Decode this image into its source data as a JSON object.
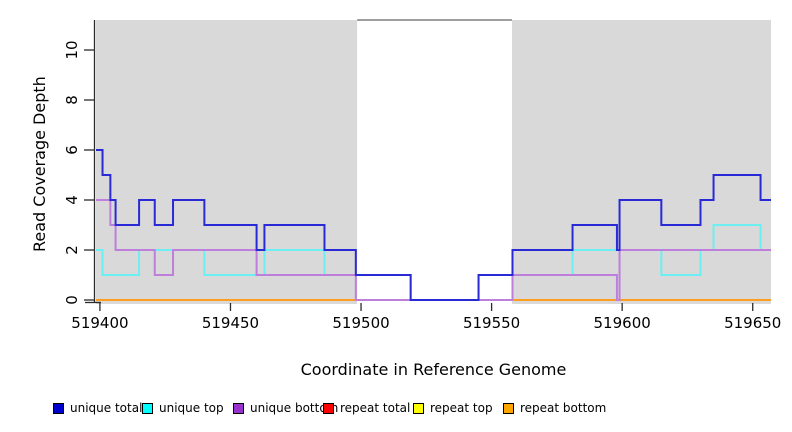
{
  "chart_data": {
    "type": "line",
    "subtype": "step-coverage",
    "title": "",
    "xlabel": "Coordinate in Reference Genome",
    "ylabel": "Read Coverage Depth",
    "xlim": [
      519398.5,
      519657
    ],
    "ylim": [
      0,
      11.2
    ],
    "x_ticks": [
      519400,
      519450,
      519500,
      519550,
      519600,
      519650
    ],
    "y_ticks": [
      0,
      2,
      4,
      6,
      8,
      10
    ],
    "grid": false,
    "shaded_regions": [
      {
        "x0": 519398.5,
        "x1": 519498.5,
        "color": "#d9d9d9"
      },
      {
        "x0": 519557.8,
        "x1": 519657.0,
        "color": "#d9d9d9"
      }
    ],
    "gap_top_border": {
      "x0": 519498.5,
      "x1": 519557.8,
      "color": "#7f7f7f"
    },
    "series": [
      {
        "name": "unique total",
        "line_color": "#2929d6",
        "legend_color": "#0000cd",
        "steps": [
          [
            519398.5,
            6
          ],
          [
            519401,
            5
          ],
          [
            519404,
            4
          ],
          [
            519406,
            3
          ],
          [
            519415,
            4
          ],
          [
            519421,
            3
          ],
          [
            519428,
            4
          ],
          [
            519440,
            3
          ],
          [
            519460,
            2
          ],
          [
            519463,
            3
          ],
          [
            519486,
            2
          ],
          [
            519498,
            1
          ],
          [
            519519,
            0
          ],
          [
            519545,
            1
          ],
          [
            519558,
            2
          ],
          [
            519581,
            3
          ],
          [
            519598,
            2
          ],
          [
            519599,
            4
          ],
          [
            519615,
            3
          ],
          [
            519630,
            4
          ],
          [
            519635,
            5
          ],
          [
            519653,
            4
          ]
        ],
        "end": 519657
      },
      {
        "name": "unique top",
        "line_color": "#6ceff2",
        "legend_color": "#00ffff",
        "steps": [
          [
            519398.5,
            2
          ],
          [
            519401,
            1
          ],
          [
            519415,
            2
          ],
          [
            519440,
            1
          ],
          [
            519463,
            2
          ],
          [
            519486,
            1
          ],
          [
            519519,
            0
          ],
          [
            519545,
            1
          ],
          [
            519581,
            2
          ],
          [
            519615,
            1
          ],
          [
            519630,
            2
          ],
          [
            519635,
            3
          ],
          [
            519653,
            2
          ]
        ],
        "end": 519657
      },
      {
        "name": "unique bottom",
        "line_color": "#bd7fdb",
        "legend_color": "#9932cc",
        "steps": [
          [
            519398.5,
            4
          ],
          [
            519404,
            3
          ],
          [
            519406,
            2
          ],
          [
            519421,
            1
          ],
          [
            519428,
            2
          ],
          [
            519460,
            1
          ],
          [
            519498,
            0
          ],
          [
            519558,
            1
          ],
          [
            519598,
            0
          ],
          [
            519599,
            2
          ]
        ],
        "end": 519657
      },
      {
        "name": "repeat total",
        "line_color": "#ee4444",
        "legend_color": "#ff0000",
        "steps": [
          [
            519398.5,
            0
          ]
        ],
        "end": 519657
      },
      {
        "name": "repeat top",
        "line_color": "#ffff00",
        "legend_color": "#ffff00",
        "steps": [
          [
            519398.5,
            0
          ]
        ],
        "end": 519657
      },
      {
        "name": "repeat bottom",
        "line_color": "#ff9d1e",
        "legend_color": "#ffa500",
        "steps": [
          [
            519398.5,
            0
          ]
        ],
        "end": 519657
      }
    ],
    "legend_position": "bottom-horizontal"
  },
  "labels": {
    "xlabel": "Coordinate in Reference Genome",
    "ylabel": "Read Coverage Depth"
  }
}
